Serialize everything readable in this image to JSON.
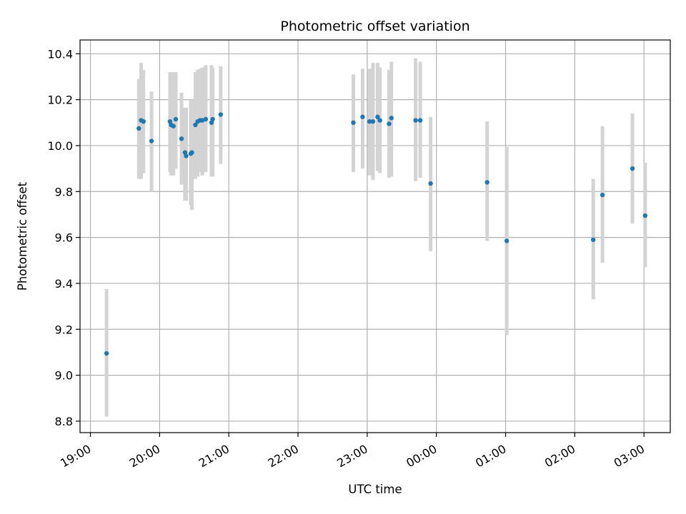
{
  "chart_data": {
    "type": "scatter",
    "title": "Photometric offset variation",
    "xlabel": "UTC time",
    "ylabel": "Photometric offset",
    "ylim": [
      8.75,
      10.46
    ],
    "xlim_hours": [
      18.85,
      27.38
    ],
    "grid": true,
    "colors": {
      "point": "#1f77b4",
      "errorbar": "#d3d3d3",
      "grid": "#b0b0b0"
    },
    "x_ticks": [
      {
        "h": 19,
        "label": "19:00"
      },
      {
        "h": 20,
        "label": "20:00"
      },
      {
        "h": 21,
        "label": "21:00"
      },
      {
        "h": 22,
        "label": "22:00"
      },
      {
        "h": 23,
        "label": "23:00"
      },
      {
        "h": 24,
        "label": "00:00"
      },
      {
        "h": 25,
        "label": "01:00"
      },
      {
        "h": 26,
        "label": "02:00"
      },
      {
        "h": 27,
        "label": "03:00"
      }
    ],
    "y_ticks": [
      {
        "v": 8.8,
        "label": "8.8"
      },
      {
        "v": 9.0,
        "label": "9.0"
      },
      {
        "v": 9.2,
        "label": "9.2"
      },
      {
        "v": 9.4,
        "label": "9.4"
      },
      {
        "v": 9.6,
        "label": "9.6"
      },
      {
        "v": 9.8,
        "label": "9.8"
      },
      {
        "v": 10.0,
        "label": "10.0"
      },
      {
        "v": 10.2,
        "label": "10.2"
      },
      {
        "v": 10.4,
        "label": "10.4"
      }
    ],
    "points": [
      {
        "t": "19:14",
        "y": 9.095,
        "lo": 8.82,
        "hi": 9.375
      },
      {
        "t": "19:42",
        "y": 10.075,
        "lo": 9.855,
        "hi": 10.29
      },
      {
        "t": "19:44",
        "y": 10.11,
        "lo": 9.855,
        "hi": 10.36
      },
      {
        "t": "19:46",
        "y": 10.105,
        "lo": 9.88,
        "hi": 10.33
      },
      {
        "t": "19:53",
        "y": 10.02,
        "lo": 9.8,
        "hi": 10.235
      },
      {
        "t": "20:09",
        "y": 10.105,
        "lo": 9.885,
        "hi": 10.32
      },
      {
        "t": "20:10",
        "y": 10.09,
        "lo": 9.87,
        "hi": 10.32
      },
      {
        "t": "20:12",
        "y": 10.085,
        "lo": 9.87,
        "hi": 10.32
      },
      {
        "t": "20:14",
        "y": 10.115,
        "lo": 9.9,
        "hi": 10.32
      },
      {
        "t": "20:19",
        "y": 10.03,
        "lo": 9.83,
        "hi": 10.23
      },
      {
        "t": "20:22",
        "y": 9.97,
        "lo": 9.76,
        "hi": 10.165
      },
      {
        "t": "20:23",
        "y": 9.955,
        "lo": 9.76,
        "hi": 10.165
      },
      {
        "t": "20:27",
        "y": 9.965,
        "lo": 9.74,
        "hi": 10.2
      },
      {
        "t": "20:28",
        "y": 9.97,
        "lo": 9.72,
        "hi": 10.2
      },
      {
        "t": "20:31",
        "y": 10.09,
        "lo": 9.855,
        "hi": 10.32
      },
      {
        "t": "20:33",
        "y": 10.105,
        "lo": 9.865,
        "hi": 10.33
      },
      {
        "t": "20:35",
        "y": 10.11,
        "lo": 9.885,
        "hi": 10.335
      },
      {
        "t": "20:37",
        "y": 10.11,
        "lo": 9.87,
        "hi": 10.34
      },
      {
        "t": "20:40",
        "y": 10.115,
        "lo": 9.885,
        "hi": 10.35
      },
      {
        "t": "20:45",
        "y": 10.1,
        "lo": 9.865,
        "hi": 10.35
      },
      {
        "t": "20:46",
        "y": 10.115,
        "lo": 9.865,
        "hi": 10.34
      },
      {
        "t": "20:53",
        "y": 10.135,
        "lo": 9.92,
        "hi": 10.345
      },
      {
        "t": "22:48",
        "y": 10.1,
        "lo": 9.885,
        "hi": 10.31
      },
      {
        "t": "22:56",
        "y": 10.125,
        "lo": 9.9,
        "hi": 10.335
      },
      {
        "t": "23:02",
        "y": 10.105,
        "lo": 9.87,
        "hi": 10.335
      },
      {
        "t": "23:05",
        "y": 10.105,
        "lo": 9.85,
        "hi": 10.36
      },
      {
        "t": "23:09",
        "y": 10.125,
        "lo": 9.89,
        "hi": 10.36
      },
      {
        "t": "23:11",
        "y": 10.11,
        "lo": 9.88,
        "hi": 10.34
      },
      {
        "t": "23:19",
        "y": 10.095,
        "lo": 9.86,
        "hi": 10.33
      },
      {
        "t": "23:21",
        "y": 10.12,
        "lo": 9.865,
        "hi": 10.365
      },
      {
        "t": "23:42",
        "y": 10.11,
        "lo": 9.845,
        "hi": 10.38
      },
      {
        "t": "23:46",
        "y": 10.11,
        "lo": 9.86,
        "hi": 10.365
      },
      {
        "t": "23:55",
        "y": 9.835,
        "lo": 9.54,
        "hi": 10.125
      },
      {
        "t": "00:44",
        "y": 9.84,
        "lo": 9.585,
        "hi": 10.105
      },
      {
        "t": "01:01",
        "y": 9.585,
        "lo": 9.175,
        "hi": 9.995
      },
      {
        "t": "02:16",
        "y": 9.59,
        "lo": 9.33,
        "hi": 9.855
      },
      {
        "t": "02:24",
        "y": 9.785,
        "lo": 9.49,
        "hi": 10.085
      },
      {
        "t": "02:50",
        "y": 9.9,
        "lo": 9.66,
        "hi": 10.14
      },
      {
        "t": "03:01",
        "y": 9.695,
        "lo": 9.47,
        "hi": 9.925
      }
    ]
  }
}
